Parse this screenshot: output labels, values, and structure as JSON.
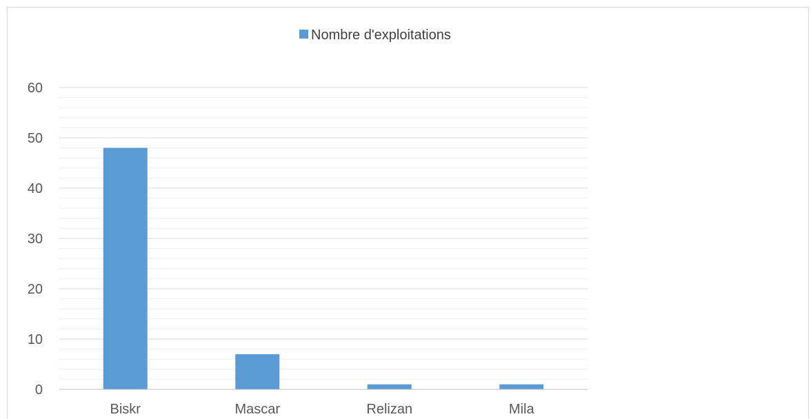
{
  "chart_data": {
    "type": "bar",
    "title": "",
    "xlabel": "",
    "ylabel": "",
    "categories": [
      "Biskr",
      "Mascar",
      "Relizan",
      "Mila"
    ],
    "series": [
      {
        "name": "Nombre d'exploitations",
        "values": [
          48,
          7,
          1,
          1
        ],
        "color": "#5b9bd5"
      }
    ],
    "ylim": [
      0,
      60
    ],
    "y_ticks": [
      0,
      10,
      20,
      30,
      40,
      50,
      60
    ],
    "y_minor_step": 2,
    "grid": true,
    "legend_position": "top"
  }
}
